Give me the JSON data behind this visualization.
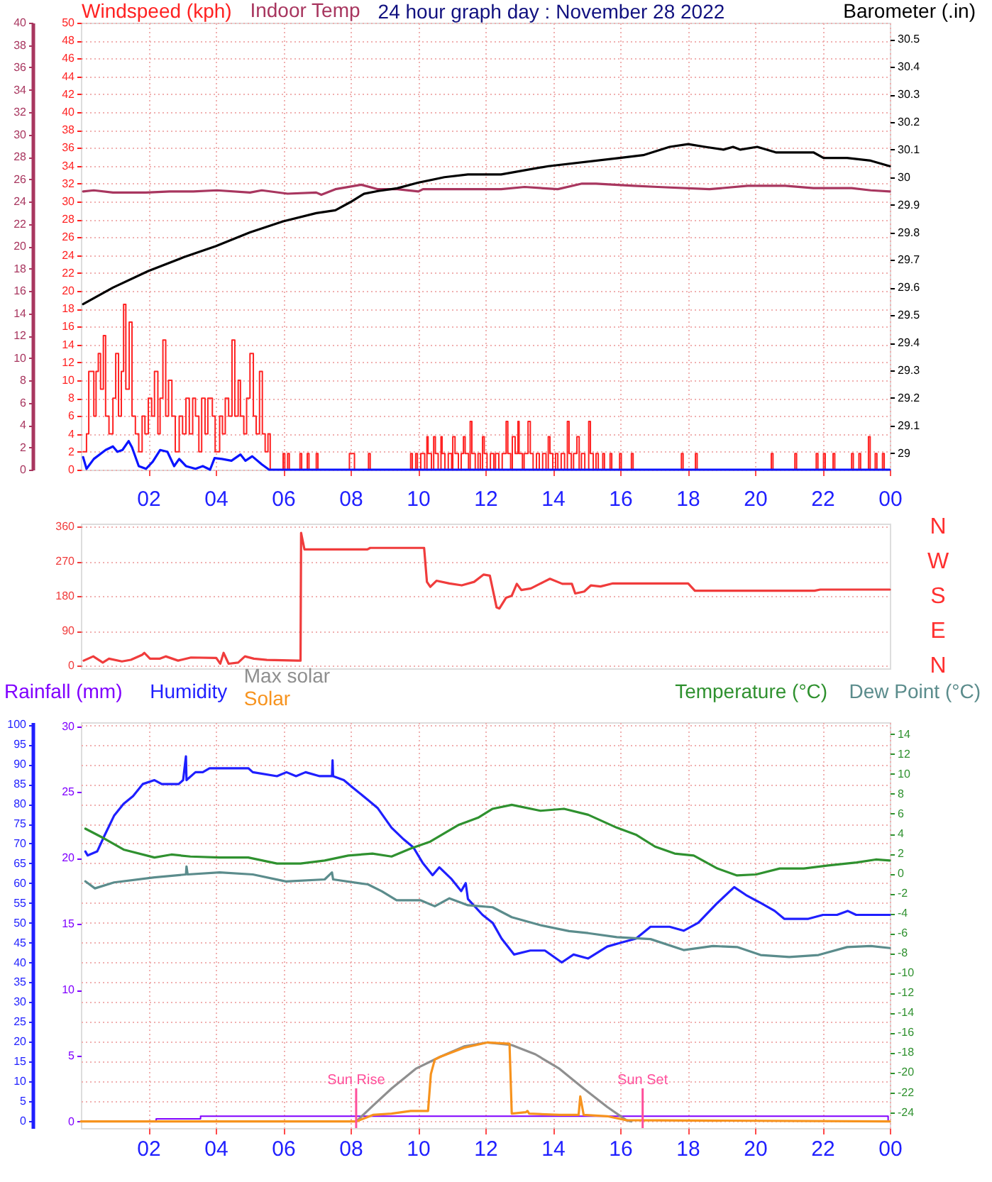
{
  "chart_data": [
    {
      "type": "line",
      "title": "24 hour graph day : November 28 2022",
      "ylabel": "Windspeed (kph)",
      "y2label": "Barometer (.in)",
      "legend": "top",
      "grid": true,
      "xlim": [
        "2022-11-28T00:00",
        "2022-11-29T00:00"
      ],
      "xticks": [
        {
          "value": "2022-11-28T02:00",
          "label": "02"
        },
        {
          "value": "2022-11-28T04:00",
          "label": "04"
        },
        {
          "value": "2022-11-28T06:00",
          "label": "06"
        },
        {
          "value": "2022-11-28T08:00",
          "label": "08"
        },
        {
          "value": "2022-11-28T10:00",
          "label": "10"
        },
        {
          "value": "2022-11-28T12:00",
          "label": "12"
        },
        {
          "value": "2022-11-28T14:00",
          "label": "14"
        },
        {
          "value": "2022-11-28T16:00",
          "label": "16"
        },
        {
          "value": "2022-11-28T18:00",
          "label": "18"
        },
        {
          "value": "2022-11-28T20:00",
          "label": "20"
        },
        {
          "value": "2022-11-28T22:00",
          "label": "22"
        },
        {
          "value": "2022-11-29T00:00",
          "label": "00"
        }
      ],
      "ylim": [
        0,
        50
      ],
      "yticks": [
        0,
        2,
        4,
        6,
        8,
        10,
        12,
        14,
        16,
        18,
        20,
        22,
        24,
        26,
        28,
        30,
        32,
        34,
        36,
        38,
        40,
        42,
        44,
        46,
        48,
        50
      ],
      "y2lim": [
        28.94,
        30.56
      ],
      "y2ticks": [
        29,
        29.1,
        29.2,
        29.3,
        29.4,
        29.5,
        29.6,
        29.7,
        29.8,
        29.9,
        30,
        30.1,
        30.2,
        30.3,
        30.4,
        30.5
      ],
      "y3lim": [
        0,
        40
      ],
      "y3ticks": [
        0,
        2,
        4,
        6,
        8,
        10,
        12,
        14,
        16,
        18,
        20,
        22,
        24,
        26,
        28,
        30,
        32,
        34,
        36,
        38,
        40
      ],
      "series": [
        {
          "name": "Indoor Temp",
          "color": "#a8365f",
          "axis": "y3",
          "x": [
            "2022-11-28T00:04",
            "2022-11-28T00:23",
            "2022-11-28T00:57",
            "2022-11-28T01:56",
            "2022-11-28T02:38",
            "2022-11-28T03:20",
            "2022-11-28T04:02",
            "2022-11-28T05:01",
            "2022-11-28T05:22",
            "2022-11-28T06:08",
            "2022-11-28T06:59",
            "2022-11-28T07:08",
            "2022-11-28T07:33",
            "2022-11-28T08:19",
            "2022-11-28T08:49",
            "2022-11-28T09:23",
            "2022-11-28T10:01",
            "2022-11-28T10:09",
            "2022-11-28T12:28",
            "2022-11-28T13:10",
            "2022-11-28T14:09",
            "2022-11-28T14:52",
            "2022-11-28T15:17",
            "2022-11-28T16:24",
            "2022-11-28T17:07",
            "2022-11-28T18:39",
            "2022-11-28T19:47",
            "2022-11-28T20:54",
            "2022-11-28T21:44",
            "2022-11-28T22:52",
            "2022-11-28T23:26",
            "2022-11-29T00:00"
          ],
          "values": [
            24.9,
            25.0,
            24.8,
            24.8,
            24.9,
            24.9,
            25.0,
            24.8,
            25.0,
            24.7,
            24.8,
            24.6,
            25.1,
            25.5,
            25.1,
            25.1,
            24.9,
            25.1,
            25.1,
            25.3,
            25.1,
            25.6,
            25.6,
            25.4,
            25.3,
            25.1,
            25.4,
            25.4,
            25.2,
            25.2,
            25.0,
            24.9
          ]
        },
        {
          "color": "#000000",
          "axis": "y2",
          "x": [
            "2022-11-28T00:04",
            "2022-11-28T00:57",
            "2022-11-28T02:00",
            "2022-11-28T03:03",
            "2022-11-28T04:00",
            "2022-11-28T05:01",
            "2022-11-28T06:00",
            "2022-11-28T06:59",
            "2022-11-28T07:33",
            "2022-11-28T08:00",
            "2022-11-28T08:24",
            "2022-11-28T08:49",
            "2022-11-28T09:23",
            "2022-11-28T10:00",
            "2022-11-28T10:47",
            "2022-11-28T11:29",
            "2022-11-28T12:28",
            "2022-11-28T13:52",
            "2022-11-28T15:59",
            "2022-11-28T16:41",
            "2022-11-28T17:28",
            "2022-11-28T18:01",
            "2022-11-28T18:31",
            "2022-11-28T19:04",
            "2022-11-28T19:21",
            "2022-11-28T19:34",
            "2022-11-28T20:04",
            "2022-11-28T20:37",
            "2022-11-28T21:11",
            "2022-11-28T21:44",
            "2022-11-28T22:02",
            "2022-11-28T22:44",
            "2022-11-28T23:26",
            "2022-11-29T00:00"
          ],
          "values": [
            29.54,
            29.6,
            29.66,
            29.71,
            29.75,
            29.8,
            29.84,
            29.87,
            29.88,
            29.91,
            29.94,
            29.95,
            29.96,
            29.98,
            30.0,
            30.01,
            30.01,
            30.04,
            30.07,
            30.08,
            30.11,
            30.12,
            30.11,
            30.1,
            30.11,
            30.1,
            30.11,
            30.09,
            30.09,
            30.09,
            30.07,
            30.07,
            30.06,
            30.04
          ]
        },
        {
          "color": "#ff2222",
          "type": "step",
          "x": [
            "2022-11-28T00:04",
            "2022-11-28T00:10",
            "2022-11-28T00:14",
            "2022-11-28T00:23",
            "2022-11-28T00:27",
            "2022-11-28T00:31",
            "2022-11-28T00:35",
            "2022-11-28T00:40",
            "2022-11-28T00:44",
            "2022-11-28T00:50",
            "2022-11-28T00:57",
            "2022-11-28T01:02",
            "2022-11-28T01:07",
            "2022-11-28T01:12",
            "2022-11-28T01:16",
            "2022-11-28T01:20",
            "2022-11-28T01:26",
            "2022-11-28T01:31",
            "2022-11-28T01:37",
            "2022-11-28T01:43",
            "2022-11-28T01:49",
            "2022-11-28T01:54",
            "2022-11-28T02:00",
            "2022-11-28T02:06",
            "2022-11-28T02:11",
            "2022-11-28T02:17",
            "2022-11-28T02:21",
            "2022-11-28T02:26",
            "2022-11-28T02:31",
            "2022-11-28T02:36",
            "2022-11-28T02:42",
            "2022-11-28T02:48",
            "2022-11-28T02:55",
            "2022-11-28T03:01",
            "2022-11-28T03:07",
            "2022-11-28T03:13",
            "2022-11-28T03:19",
            "2022-11-28T03:24",
            "2022-11-28T03:30",
            "2022-11-28T03:35",
            "2022-11-28T03:41",
            "2022-11-28T03:46",
            "2022-11-28T03:54",
            "2022-11-28T03:59",
            "2022-11-28T04:07",
            "2022-11-28T04:12",
            "2022-11-28T04:17",
            "2022-11-28T04:23",
            "2022-11-28T04:29",
            "2022-11-28T04:34",
            "2022-11-28T04:40",
            "2022-11-28T04:44",
            "2022-11-28T04:50",
            "2022-11-28T04:55",
            "2022-11-28T05:01",
            "2022-11-28T05:07",
            "2022-11-28T05:12",
            "2022-11-28T05:18",
            "2022-11-28T05:23",
            "2022-11-28T05:28",
            "2022-11-28T05:33",
            "2022-11-28T05:37",
            "2022-11-28T06:00",
            "2022-11-28T06:03",
            "2022-11-28T06:08",
            "2022-11-28T06:11",
            "2022-11-28T06:30",
            "2022-11-28T06:33",
            "2022-11-28T06:43",
            "2022-11-28T06:46",
            "2022-11-28T06:59",
            "2022-11-28T07:02",
            "2022-11-28T07:58",
            "2022-11-28T08:07",
            "2022-11-28T08:32",
            "2022-11-28T08:35",
            "2022-11-28T09:47",
            "2022-11-28T09:50",
            "2022-11-28T09:56",
            "2022-11-28T09:59",
            "2022-11-28T10:05",
            "2022-11-28T10:12",
            "2022-11-28T10:16",
            "2022-11-28T10:18",
            "2022-11-28T10:24",
            "2022-11-28T10:28",
            "2022-11-28T10:31",
            "2022-11-28T10:36",
            "2022-11-28T10:41",
            "2022-11-28T10:43",
            "2022-11-28T10:48",
            "2022-11-28T10:54",
            "2022-11-28T11:00",
            "2022-11-28T11:02",
            "2022-11-28T11:06",
            "2022-11-28T11:12",
            "2022-11-28T11:17",
            "2022-11-28T11:21",
            "2022-11-28T11:24",
            "2022-11-28T11:30",
            "2022-11-28T11:33",
            "2022-11-28T11:36",
            "2022-11-28T11:42",
            "2022-11-28T11:47",
            "2022-11-28T11:51",
            "2022-11-28T11:55",
            "2022-11-28T11:58",
            "2022-11-28T12:03",
            "2022-11-28T12:09",
            "2022-11-28T12:15",
            "2022-11-28T12:18",
            "2022-11-28T12:24",
            "2022-11-28T12:30",
            "2022-11-28T12:37",
            "2022-11-28T12:40",
            "2022-11-28T12:45",
            "2022-11-28T12:48",
            "2022-11-28T12:53",
            "2022-11-28T12:58",
            "2022-11-28T13:00",
            "2022-11-28T13:06",
            "2022-11-28T13:09",
            "2022-11-28T13:16",
            "2022-11-28T13:20",
            "2022-11-28T13:25",
            "2022-11-28T13:31",
            "2022-11-28T13:36",
            "2022-11-28T13:42",
            "2022-11-28T13:48",
            "2022-11-28T13:52",
            "2022-11-28T13:55",
            "2022-11-28T14:00",
            "2022-11-28T14:05",
            "2022-11-28T14:09",
            "2022-11-28T14:15",
            "2022-11-28T14:21",
            "2022-11-28T14:26",
            "2022-11-28T14:29",
            "2022-11-28T14:33",
            "2022-11-28T14:37",
            "2022-11-28T14:43",
            "2022-11-28T14:47",
            "2022-11-28T14:51",
            "2022-11-28T14:57",
            "2022-11-28T15:04",
            "2022-11-28T15:07",
            "2022-11-28T15:12",
            "2022-11-28T15:17",
            "2022-11-28T15:21",
            "2022-11-28T15:29",
            "2022-11-28T15:32",
            "2022-11-28T15:42",
            "2022-11-28T15:45",
            "2022-11-28T15:59",
            "2022-11-28T16:02",
            "2022-11-28T16:20",
            "2022-11-28T16:23",
            "2022-11-28T17:49",
            "2022-11-28T17:52",
            "2022-11-28T18:14",
            "2022-11-28T18:17",
            "2022-11-28T20:29",
            "2022-11-28T20:32",
            "2022-11-28T21:11",
            "2022-11-28T21:14",
            "2022-11-28T21:49",
            "2022-11-28T21:52",
            "2022-11-28T22:02",
            "2022-11-28T22:05",
            "2022-11-28T22:19",
            "2022-11-28T22:22",
            "2022-11-28T22:52",
            "2022-11-28T22:55",
            "2022-11-28T23:05",
            "2022-11-28T23:08",
            "2022-11-28T23:22",
            "2022-11-28T23:25",
            "2022-11-28T23:34",
            "2022-11-28T23:37",
            "2022-11-28T23:47",
            "2022-11-28T23:50",
            "2022-11-29T00:00"
          ],
          "values": [
            2,
            4,
            11,
            6,
            11,
            13,
            9,
            15,
            6,
            4,
            8,
            13,
            6,
            11,
            18.5,
            9,
            16.5,
            6,
            4,
            2,
            6,
            4,
            8,
            6,
            11,
            4,
            8,
            14.5,
            6,
            10,
            6,
            2,
            6,
            4,
            8,
            4,
            8,
            6,
            2,
            8,
            4,
            8,
            6,
            2,
            6,
            4,
            8,
            6,
            14.5,
            6,
            10,
            6,
            4,
            8,
            13,
            6,
            4,
            11,
            4,
            2,
            4,
            0,
            1.8,
            0,
            1.8,
            0,
            1.8,
            0,
            1.8,
            0,
            1.8,
            0,
            1.8,
            0,
            1.8,
            0,
            1.8,
            0,
            1.8,
            0,
            1.8,
            0,
            3.7,
            1.8,
            0,
            3.7,
            1.8,
            0,
            3.7,
            1.8,
            0,
            1.8,
            0,
            3.7,
            1.8,
            0,
            1.8,
            3.7,
            1.8,
            0,
            5.4,
            1.8,
            0,
            1.8,
            0,
            3.7,
            1.8,
            0,
            1.8,
            0,
            1.8,
            0,
            1.8,
            5.4,
            1.8,
            0,
            3.7,
            1.8,
            5.4,
            1.8,
            0,
            1.8,
            5.4,
            1.8,
            0,
            1.8,
            0,
            1.8,
            0,
            3.7,
            1.8,
            0,
            1.8,
            0,
            1.8,
            0,
            5.4,
            1.8,
            0,
            1.8,
            3.7,
            0,
            1.8,
            0,
            5.4,
            1.8,
            0,
            1.8,
            0,
            1.8,
            0,
            1.8,
            0,
            1.8,
            0,
            1.8,
            0,
            1.8,
            0,
            1.8,
            0,
            1.8,
            0,
            1.8,
            0,
            1.8,
            0,
            1.8,
            0,
            1.8,
            0,
            1.8,
            0,
            1.8,
            0,
            3.7,
            0,
            1.8,
            0,
            1.8,
            0,
            0
          ]
        },
        {
          "color": "#0a14ff",
          "x": [
            "2022-11-28T00:04",
            "2022-11-28T00:10",
            "2022-11-28T00:23",
            "2022-11-28T00:44",
            "2022-11-28T00:57",
            "2022-11-28T01:05",
            "2022-11-28T01:14",
            "2022-11-28T01:25",
            "2022-11-28T01:31",
            "2022-11-28T01:43",
            "2022-11-28T01:56",
            "2022-11-28T02:08",
            "2022-11-28T02:21",
            "2022-11-28T02:34",
            "2022-11-28T02:46",
            "2022-11-28T02:55",
            "2022-11-28T03:07",
            "2022-11-28T03:24",
            "2022-11-28T03:37",
            "2022-11-28T03:50",
            "2022-11-28T03:58",
            "2022-11-28T04:11",
            "2022-11-28T04:28",
            "2022-11-28T04:44",
            "2022-11-28T04:53",
            "2022-11-28T05:05",
            "2022-11-28T05:22",
            "2022-11-28T05:35",
            "2022-11-29T00:00"
          ],
          "values": [
            1.4,
            0.1,
            1.2,
            2.2,
            2.6,
            2.0,
            2.2,
            3.2,
            2.5,
            0.4,
            0.1,
            0.9,
            2.2,
            2.0,
            0.4,
            1.2,
            0.4,
            0.1,
            0.4,
            0,
            1.3,
            1.2,
            1.0,
            1.7,
            1.0,
            1.5,
            0.6,
            0,
            0
          ]
        }
      ]
    },
    {
      "type": "line",
      "grid": "y",
      "tick_labels": "y",
      "xlim": [
        "2022-11-28T00:00",
        "2022-11-29T00:00"
      ],
      "ylim": [
        -7,
        368
      ],
      "yticks": [
        0,
        90,
        180,
        270,
        360
      ],
      "annotations": [
        "N",
        "W",
        "S",
        "E",
        "N"
      ],
      "series": [
        {
          "color": "#f03c3c",
          "x": [
            "2022-11-28T00:05",
            "2022-11-28T00:22",
            "2022-11-28T00:39",
            "2022-11-28T00:50",
            "2022-11-28T01:13",
            "2022-11-28T01:29",
            "2022-11-28T01:49",
            "2022-11-28T01:53",
            "2022-11-28T02:03",
            "2022-11-28T02:20",
            "2022-11-28T02:31",
            "2022-11-28T02:53",
            "2022-11-28T03:16",
            "2022-11-28T04:01",
            "2022-11-28T04:08",
            "2022-11-28T04:14",
            "2022-11-28T04:23",
            "2022-11-28T04:40",
            "2022-11-28T04:52",
            "2022-11-28T05:08",
            "2022-11-28T05:31",
            "2022-11-28T06:26",
            "2022-11-28T06:31",
            "2022-11-28T06:32",
            "2022-11-28T06:38",
            "2022-11-28T08:30",
            "2022-11-28T08:35",
            "2022-11-28T10:11",
            "2022-11-28T10:16",
            "2022-11-28T10:22",
            "2022-11-28T10:33",
            "2022-11-28T10:56",
            "2022-11-28T11:18",
            "2022-11-28T11:40",
            "2022-11-28T11:57",
            "2022-11-28T12:08",
            "2022-11-28T12:20",
            "2022-11-28T12:25",
            "2022-11-28T12:37",
            "2022-11-28T12:47",
            "2022-11-28T12:56",
            "2022-11-28T13:04",
            "2022-11-28T13:21",
            "2022-11-28T13:44",
            "2022-11-28T13:55",
            "2022-11-28T14:17",
            "2022-11-28T14:34",
            "2022-11-28T14:40",
            "2022-11-28T14:56",
            "2022-11-28T15:08",
            "2022-11-28T15:25",
            "2022-11-28T15:47",
            "2022-11-28T18:01",
            "2022-11-28T18:13",
            "2022-11-28T21:46",
            "2022-11-28T21:56",
            "2022-11-29T00:00"
          ],
          "values": [
            13,
            24,
            8,
            18,
            11,
            15,
            28,
            33,
            18,
            18,
            24,
            13,
            21,
            20,
            5,
            33,
            5,
            8,
            24,
            18,
            15,
            13,
            13,
            344,
            301,
            301,
            305,
            305,
            217,
            204,
            220,
            213,
            208,
            217,
            236,
            233,
            151,
            148,
            176,
            181,
            212,
            196,
            200,
            217,
            225,
            212,
            212,
            187,
            192,
            208,
            205,
            213,
            213,
            194,
            194,
            197,
            197
          ]
        }
      ]
    },
    {
      "type": "line",
      "legend": "top",
      "grid": true,
      "xlim": [
        "2022-11-28T00:00",
        "2022-11-29T00:00"
      ],
      "xticks": [
        {
          "value": "2022-11-28T02:00",
          "label": "02"
        },
        {
          "value": "2022-11-28T04:00",
          "label": "04"
        },
        {
          "value": "2022-11-28T06:00",
          "label": "06"
        },
        {
          "value": "2022-11-28T08:00",
          "label": "08"
        },
        {
          "value": "2022-11-28T10:00",
          "label": "10"
        },
        {
          "value": "2022-11-28T12:00",
          "label": "12"
        },
        {
          "value": "2022-11-28T14:00",
          "label": "14"
        },
        {
          "value": "2022-11-28T16:00",
          "label": "16"
        },
        {
          "value": "2022-11-28T18:00",
          "label": "18"
        },
        {
          "value": "2022-11-28T20:00",
          "label": "20"
        },
        {
          "value": "2022-11-28T22:00",
          "label": "22"
        },
        {
          "value": "2022-11-29T00:00",
          "label": "00"
        }
      ],
      "ylim": [
        -0.5,
        30.3
      ],
      "yticks": [
        0,
        5,
        10,
        15,
        20,
        25,
        30
      ],
      "y3lim": [
        -1.8,
        100.6
      ],
      "y3ticks": [
        0,
        5,
        10,
        15,
        20,
        25,
        30,
        35,
        40,
        45,
        50,
        55,
        60,
        65,
        70,
        75,
        80,
        85,
        90,
        95,
        100
      ],
      "y2lim": [
        -25.6,
        15.2
      ],
      "y2ticks": [
        -24,
        -22,
        -20,
        -18,
        -16,
        -14,
        -12,
        -10,
        -8,
        -6,
        -4,
        -2,
        0,
        2,
        4,
        6,
        8,
        10,
        12,
        14
      ],
      "ref_lines": [
        {
          "axis": "x",
          "value": "2022-11-28T08:10",
          "label": "Sun Rise",
          "color": "#ff4f9b"
        },
        {
          "axis": "x",
          "value": "2022-11-28T16:40",
          "label": "Sun Set",
          "color": "#ff4f9b"
        }
      ],
      "series": [
        {
          "name": "Rainfall (mm)",
          "color": "#8000ff",
          "type": "step",
          "x": [
            "2022-11-28T00:00",
            "2022-11-28T02:14",
            "2022-11-28T03:33",
            "2022-11-28T23:57",
            "2022-11-29T00:00"
          ],
          "values": [
            0,
            0.2,
            0.4,
            0,
            0
          ]
        },
        {
          "name": "Humidity",
          "color": "#1f1fff",
          "axis": "y3",
          "x": [
            "2022-11-28T00:08",
            "2022-11-28T00:12",
            "2022-11-28T00:29",
            "2022-11-28T00:42",
            "2022-11-28T00:59",
            "2022-11-28T01:16",
            "2022-11-28T01:33",
            "2022-11-28T01:50",
            "2022-11-28T02:11",
            "2022-11-28T02:24",
            "2022-11-28T02:54",
            "2022-11-28T03:02",
            "2022-11-28T03:07",
            "2022-11-28T03:08",
            "2022-11-28T03:24",
            "2022-11-28T03:37",
            "2022-11-28T03:49",
            "2022-11-28T04:58",
            "2022-11-28T05:06",
            "2022-11-28T05:49",
            "2022-11-28T06:06",
            "2022-11-28T06:23",
            "2022-11-28T06:40",
            "2022-11-28T07:05",
            "2022-11-28T07:27",
            "2022-11-28T07:28",
            "2022-11-28T07:29",
            "2022-11-28T07:48",
            "2022-11-28T08:05",
            "2022-11-28T08:31",
            "2022-11-28T08:48",
            "2022-11-28T09:13",
            "2022-11-28T09:35",
            "2022-11-28T09:52",
            "2022-11-28T10:09",
            "2022-11-28T10:26",
            "2022-11-28T10:38",
            "2022-11-28T11:00",
            "2022-11-28T11:17",
            "2022-11-28T11:25",
            "2022-11-28T11:29",
            "2022-11-28T11:55",
            "2022-11-28T12:13",
            "2022-11-28T12:29",
            "2022-11-28T12:51",
            "2022-11-28T13:20",
            "2022-11-28T13:46",
            "2022-11-28T14:16",
            "2022-11-28T14:37",
            "2022-11-28T15:03",
            "2022-11-28T15:37",
            "2022-11-28T16:02",
            "2022-11-28T16:28",
            "2022-11-28T16:54",
            "2022-11-28T17:28",
            "2022-11-28T17:53",
            "2022-11-28T18:19",
            "2022-11-28T18:53",
            "2022-11-28T19:23",
            "2022-11-28T19:44",
            "2022-11-28T20:10",
            "2022-11-28T20:35",
            "2022-11-28T20:52",
            "2022-11-28T21:35",
            "2022-11-28T22:01",
            "2022-11-28T22:26",
            "2022-11-28T22:45",
            "2022-11-28T23:00",
            "2022-11-28T23:35",
            "2022-11-29T00:00"
          ],
          "values": [
            68,
            67,
            68,
            72,
            77,
            80,
            82,
            85,
            86,
            85,
            85,
            86,
            92,
            86,
            88,
            88,
            89,
            89,
            88,
            87,
            88,
            87,
            88,
            87,
            87,
            91,
            87,
            86,
            84,
            81,
            79,
            74,
            71,
            69,
            65,
            62,
            64,
            61,
            58,
            60,
            56,
            52,
            50,
            46,
            42,
            43,
            43,
            40,
            42,
            41,
            44,
            45,
            46,
            49,
            49,
            48,
            50,
            55,
            59,
            57,
            55,
            53,
            51,
            51,
            52,
            52,
            53,
            52,
            52,
            52
          ]
        },
        {
          "name": "Max solar",
          "color": "#8f8f8f",
          "x": [
            "2022-11-28T08:10",
            "2022-11-28T08:40",
            "2022-11-28T09:13",
            "2022-11-28T09:56",
            "2022-11-28T10:39",
            "2022-11-28T11:22",
            "2022-11-28T12:04",
            "2022-11-28T12:47",
            "2022-11-28T13:29",
            "2022-11-28T14:12",
            "2022-11-28T14:55",
            "2022-11-28T15:37",
            "2022-11-28T16:11",
            "2022-11-28T16:20"
          ],
          "values": [
            0,
            1.2,
            2.5,
            4.0,
            4.9,
            5.7,
            6.0,
            5.8,
            5.1,
            4.0,
            2.5,
            1.1,
            0.1,
            0
          ]
        },
        {
          "name": "Solar",
          "color": "#f7931e",
          "x": [
            "2022-11-28T00:00",
            "2022-11-28T08:10",
            "2022-11-28T08:40",
            "2022-11-28T09:13",
            "2022-11-28T09:47",
            "2022-11-28T10:13",
            "2022-11-28T10:18",
            "2022-11-28T10:23",
            "2022-11-28T10:30",
            "2022-11-28T10:39",
            "2022-11-28T11:22",
            "2022-11-28T12:04",
            "2022-11-28T12:43",
            "2022-11-28T12:47",
            "2022-11-28T13:12",
            "2022-11-28T13:15",
            "2022-11-28T13:18",
            "2022-11-28T14:12",
            "2022-11-28T14:46",
            "2022-11-28T14:49",
            "2022-11-28T14:55",
            "2022-11-28T15:37",
            "2022-11-28T16:11",
            "2022-11-29T00:00"
          ],
          "values": [
            0,
            0,
            0.5,
            0.6,
            0.8,
            0.8,
            0.8,
            3.6,
            4.7,
            4.9,
            5.6,
            6.0,
            5.9,
            0.6,
            0.7,
            0.8,
            0.6,
            0.5,
            0.5,
            1.9,
            0.5,
            0.4,
            0.1,
            0
          ]
        },
        {
          "name": "Temperature (°C)",
          "color": "#2f912f",
          "axis": "y2",
          "x": [
            "2022-11-28T00:08",
            "2022-11-28T00:42",
            "2022-11-28T01:16",
            "2022-11-28T02:11",
            "2022-11-28T02:41",
            "2022-11-28T03:15",
            "2022-11-28T04:07",
            "2022-11-28T04:58",
            "2022-11-28T05:49",
            "2022-11-28T06:31",
            "2022-11-28T07:14",
            "2022-11-28T07:56",
            "2022-11-28T08:39",
            "2022-11-28T09:13",
            "2022-11-28T09:47",
            "2022-11-28T10:22",
            "2022-11-28T10:52",
            "2022-11-28T11:13",
            "2022-11-28T11:47",
            "2022-11-28T12:13",
            "2022-11-28T12:47",
            "2022-11-28T13:38",
            "2022-11-28T14:20",
            "2022-11-28T15:03",
            "2022-11-28T15:54",
            "2022-11-28T16:28",
            "2022-11-28T17:02",
            "2022-11-28T17:37",
            "2022-11-28T18:11",
            "2022-11-28T18:53",
            "2022-11-28T19:28",
            "2022-11-28T20:02",
            "2022-11-28T20:44",
            "2022-11-28T21:27",
            "2022-11-28T22:10",
            "2022-11-28T23:01",
            "2022-11-28T23:35",
            "2022-11-29T00:00"
          ],
          "values": [
            4.5,
            3.5,
            2.4,
            1.6,
            1.9,
            1.7,
            1.6,
            1.6,
            1.0,
            1.0,
            1.3,
            1.8,
            2.0,
            1.7,
            2.5,
            3.2,
            4.2,
            4.9,
            5.6,
            6.5,
            6.9,
            6.3,
            6.5,
            5.9,
            4.6,
            3.9,
            2.7,
            2.0,
            1.8,
            0.5,
            -0.2,
            -0.1,
            0.5,
            0.5,
            0.8,
            1.1,
            1.4,
            1.3
          ]
        },
        {
          "name": "Dew Point (°C)",
          "color": "#5b8c8c",
          "axis": "y2",
          "x": [
            "2022-11-28T00:08",
            "2022-11-28T00:25",
            "2022-11-28T00:59",
            "2022-11-28T02:11",
            "2022-11-28T03:07",
            "2022-11-28T03:08",
            "2022-11-28T03:10",
            "2022-11-28T04:07",
            "2022-11-28T05:06",
            "2022-11-28T06:05",
            "2022-11-28T07:14",
            "2022-11-28T07:27",
            "2022-11-28T07:29",
            "2022-11-28T08:31",
            "2022-11-28T08:56",
            "2022-11-28T09:22",
            "2022-11-28T10:05",
            "2022-11-28T10:30",
            "2022-11-28T10:56",
            "2022-11-28T11:29",
            "2022-11-28T12:13",
            "2022-11-28T12:47",
            "2022-11-28T13:38",
            "2022-11-28T14:29",
            "2022-11-28T15:03",
            "2022-11-28T15:54",
            "2022-11-28T16:54",
            "2022-11-28T17:53",
            "2022-11-28T18:45",
            "2022-11-28T19:28",
            "2022-11-28T20:10",
            "2022-11-28T21:01",
            "2022-11-28T21:53",
            "2022-11-28T22:44",
            "2022-11-28T23:26",
            "2022-11-29T00:00"
          ],
          "values": [
            -0.8,
            -1.5,
            -0.9,
            -0.4,
            -0.1,
            0.7,
            -0.1,
            0.1,
            -0.1,
            -0.8,
            -0.6,
            0.1,
            -0.6,
            -1.1,
            -1.8,
            -2.7,
            -2.7,
            -3.3,
            -2.5,
            -3.2,
            -3.4,
            -4.4,
            -5.2,
            -5.8,
            -6.0,
            -6.4,
            -6.6,
            -7.7,
            -7.3,
            -7.4,
            -8.2,
            -8.4,
            -8.2,
            -7.4,
            -7.3,
            -7.5
          ]
        }
      ]
    }
  ]
}
